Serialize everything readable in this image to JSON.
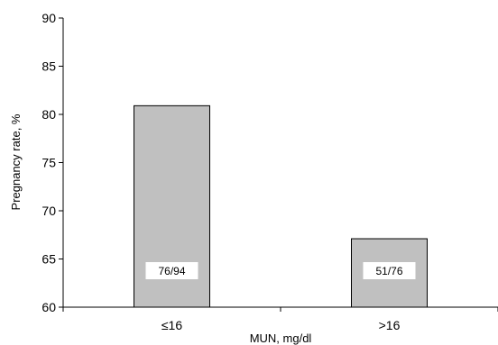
{
  "chart_data": {
    "type": "bar",
    "title": "",
    "xlabel": "MUN, mg/dl",
    "ylabel": "Pregnancy rate, %",
    "categories": [
      "≤16",
      ">16"
    ],
    "values": [
      80.9,
      67.1
    ],
    "bar_labels": [
      "76/94",
      "51/76"
    ],
    "ylim": [
      60,
      90
    ],
    "yticks": [
      60,
      65,
      70,
      75,
      80,
      85,
      90
    ],
    "grid": false,
    "legend": "none",
    "bar_color": "#c0c0c0",
    "bar_edge_color": "#000000"
  }
}
